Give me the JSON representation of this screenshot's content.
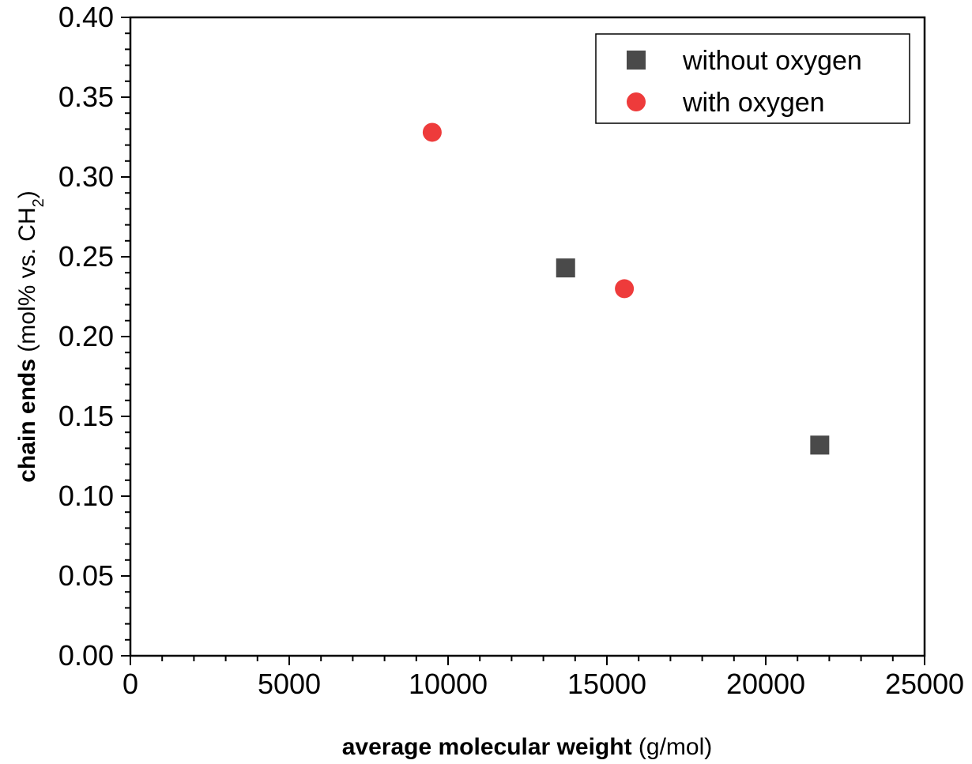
{
  "chart_data": {
    "type": "scatter",
    "xlabel": {
      "bold": "average molecular weight",
      "rest": " (g/mol)"
    },
    "ylabel": {
      "bold": "chain ends",
      "rest": " (mol% vs. CH",
      "sub": "2",
      "close": ")"
    },
    "xlim": [
      0,
      25000
    ],
    "ylim": [
      0,
      0.4
    ],
    "x_ticks": [
      0,
      5000,
      10000,
      15000,
      20000,
      25000
    ],
    "x_tick_labels": [
      "0",
      "5000",
      "10000",
      "15000",
      "20000",
      "25000"
    ],
    "y_ticks": [
      0,
      0.05,
      0.1,
      0.15,
      0.2,
      0.25,
      0.3,
      0.35,
      0.4
    ],
    "y_tick_labels": [
      "0.00",
      "0.05",
      "0.10",
      "0.15",
      "0.20",
      "0.25",
      "0.30",
      "0.35",
      "0.40"
    ],
    "grid": false,
    "legend_position": "top-right",
    "series": [
      {
        "name": "without oxygen",
        "marker": "square",
        "color": "#4a4a4a",
        "points": [
          {
            "x": 13700,
            "y": 0.243
          },
          {
            "x": 21700,
            "y": 0.132
          }
        ]
      },
      {
        "name": "with oxygen",
        "marker": "circle",
        "color": "#ee3b3b",
        "points": [
          {
            "x": 9500,
            "y": 0.328
          },
          {
            "x": 15550,
            "y": 0.23
          }
        ]
      }
    ]
  }
}
